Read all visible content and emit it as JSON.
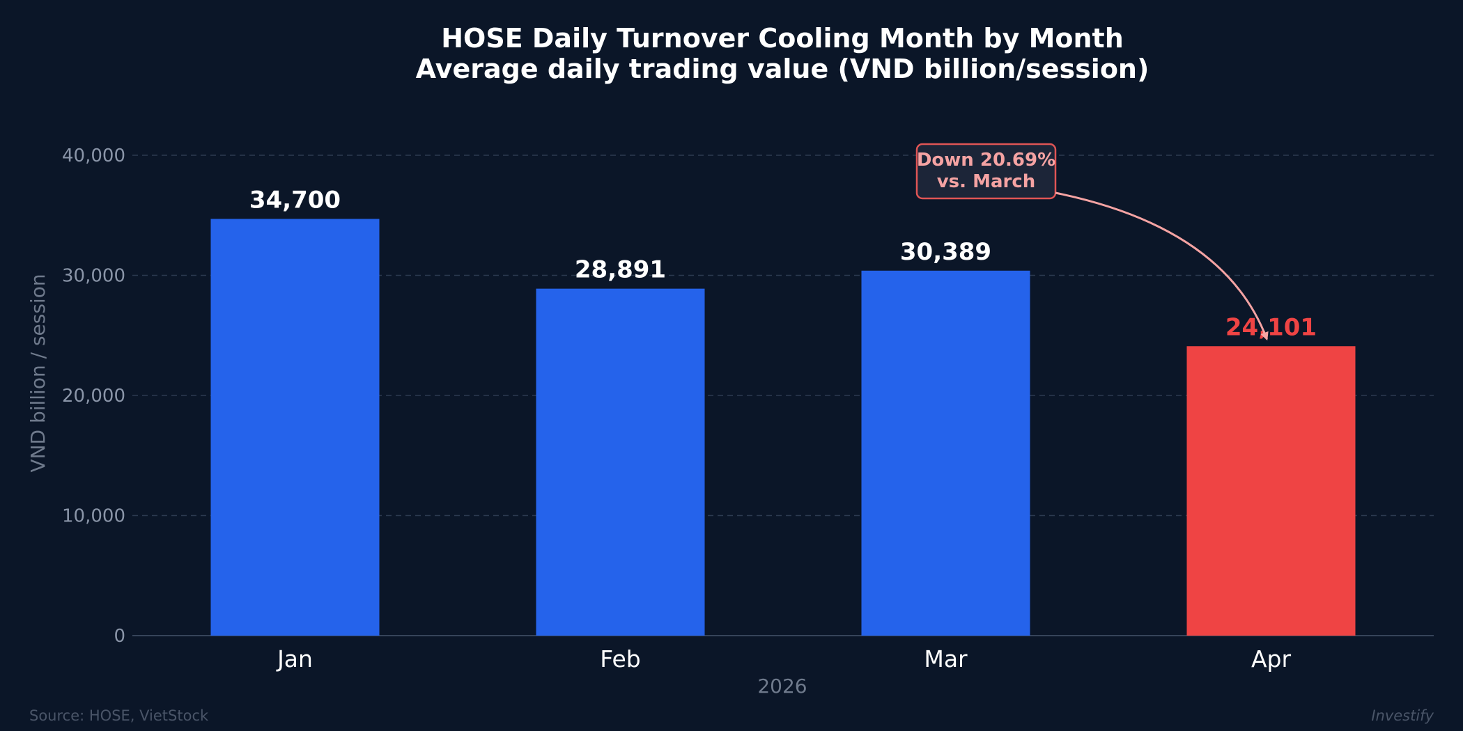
{
  "chart_data": {
    "type": "bar",
    "title": "HOSE Daily Turnover Cooling Month by Month",
    "subtitle": "Average daily trading value (VND billion/session)",
    "categories": [
      "Jan",
      "Feb",
      "Mar",
      "Apr"
    ],
    "values": [
      34700,
      28891,
      30389,
      24101
    ],
    "value_labels": [
      "34,700",
      "28,891",
      "30,389",
      "24,101"
    ],
    "xlabel": "2026",
    "ylabel": "VND billion / session",
    "ylim": [
      0,
      40000
    ],
    "yticks": [
      0,
      10000,
      20000,
      30000,
      40000
    ],
    "ytick_labels": [
      "0",
      "10,000",
      "20,000",
      "30,000",
      "40,000"
    ],
    "grid": true,
    "bar_colors": [
      "#2563eb",
      "#2563eb",
      "#2563eb",
      "#ef4444"
    ],
    "annotation": {
      "lines": [
        "Down 20.69%",
        "vs. March"
      ],
      "target_category": "Apr",
      "color": "#ef4444"
    }
  },
  "footer": {
    "source": "Source: HOSE, VietStock",
    "brand": "Investify"
  }
}
